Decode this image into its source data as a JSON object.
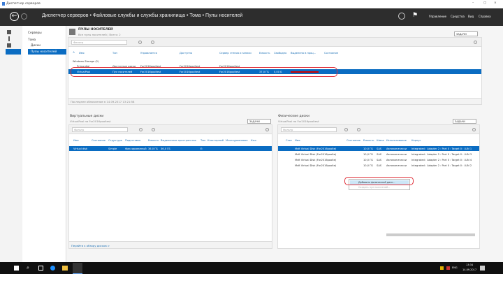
{
  "window": {
    "title": "Диспетчер серверов",
    "controls": [
      "–",
      "▢",
      "×"
    ]
  },
  "header": {
    "breadcrumb": "Диспетчер серверов • Файловые службы и службы хранилища • Тома • Пулы носителей",
    "menu": [
      "Управление",
      "Средства",
      "Вид",
      "Справка"
    ]
  },
  "nav": {
    "items": [
      "Серверы",
      "Тома",
      "Диски",
      "Пулы носителей"
    ],
    "selected": "Пулы носителей"
  },
  "pools": {
    "title": "ПУЛЫ НОСИТЕЛЕЙ",
    "subtitle": "Все пулы носителей | Всего: 2",
    "tasks": "ЗАДАЧИ",
    "filter_placeholder": "Фильтр",
    "columns": [
      "Имя",
      "Тип",
      "Управляется",
      "Доступно",
      "Сервер чтения и записи",
      "Емкость",
      "Свободно",
      "Выделено в проц...",
      "Состояние"
    ],
    "group": "Windows Storage (2)",
    "rows": [
      [
        "Primordial",
        "Доступные диски",
        "For2016pooltest",
        "For2016pooltest",
        "For2016pooltest",
        "",
        "",
        "",
        ""
      ],
      [
        "VirtualPool",
        "Пул носителей",
        "For2016pooltest",
        "For2016pooltest",
        "For2016pooltest",
        "37,0 ГБ",
        "0,00 Б",
        "",
        ""
      ]
    ],
    "allocated_percent": 100,
    "footer": "Последнее обновление в 14.09.2017 13:21:58"
  },
  "vdisks": {
    "title": "Виртуальные диски",
    "subtitle": "VirtualPool на For2016pooltest",
    "tasks": "ЗАДАЧИ",
    "filter_placeholder": "Фильтр",
    "columns": [
      "Имя",
      "Состояние",
      "Структура",
      "Подготовка",
      "Емкость",
      "Выделенное пространство",
      "Том",
      "Кластерный",
      "Многоуровневое",
      "Кэш"
    ],
    "rows": [
      [
        "Virtual disk",
        "",
        "Simple",
        "Фиксированный",
        "36,0 ГБ",
        "36,0 ГБ",
        "E:",
        "",
        "",
        ""
      ]
    ],
    "footer": "Перейти к обзору дисков >"
  },
  "pdisks": {
    "title": "Физические диски",
    "subtitle": "VirtualPool на For2016pooltest",
    "tasks": "ЗАДАЧИ",
    "filter_placeholder": "Фильтр",
    "columns": [
      "Слот",
      "Имя",
      "Состояние",
      "Емкость",
      "Шина",
      "Использование",
      "Корпус"
    ],
    "rows": [
      [
        "",
        "Msft Virtual Disk (For2016poolte)",
        "",
        "10,0 ГБ",
        "SAS",
        "Автоматически",
        "Integrated : Adapter 2 : Port 0 : Target 0 : LUN 1"
      ],
      [
        "",
        "Msft Virtual Disk (For2016poolte)",
        "",
        "10,0 ГБ",
        "SAS",
        "Автоматически",
        "Integrated : Adapter 2 : Port 0 : Target 0 : LUN 3"
      ],
      [
        "",
        "Msft Virtual Disk (For2016poolte)",
        "",
        "10,0 ГБ",
        "SAS",
        "Автоматически",
        "Integrated : Adapter 2 : Port 0 : Target 0 : LUN 4"
      ],
      [
        "",
        "Msft Virtual Disk (For2016poolte)",
        "",
        "10,0 ГБ",
        "SAS",
        "Автоматически",
        "Integrated : Adapter 2 : Port 0 : Target 0 : LUN 2"
      ]
    ],
    "context_menu": [
      "Добавить физический диск...",
      "Создать пул носителей..."
    ]
  },
  "taskbar": {
    "lang": "ENG",
    "time": "13:34",
    "date": "14.09.2017"
  },
  "colors": {
    "header": "#2d2d2d",
    "selection": "#0a6cc2",
    "highlight_ring": "#e0303a"
  }
}
